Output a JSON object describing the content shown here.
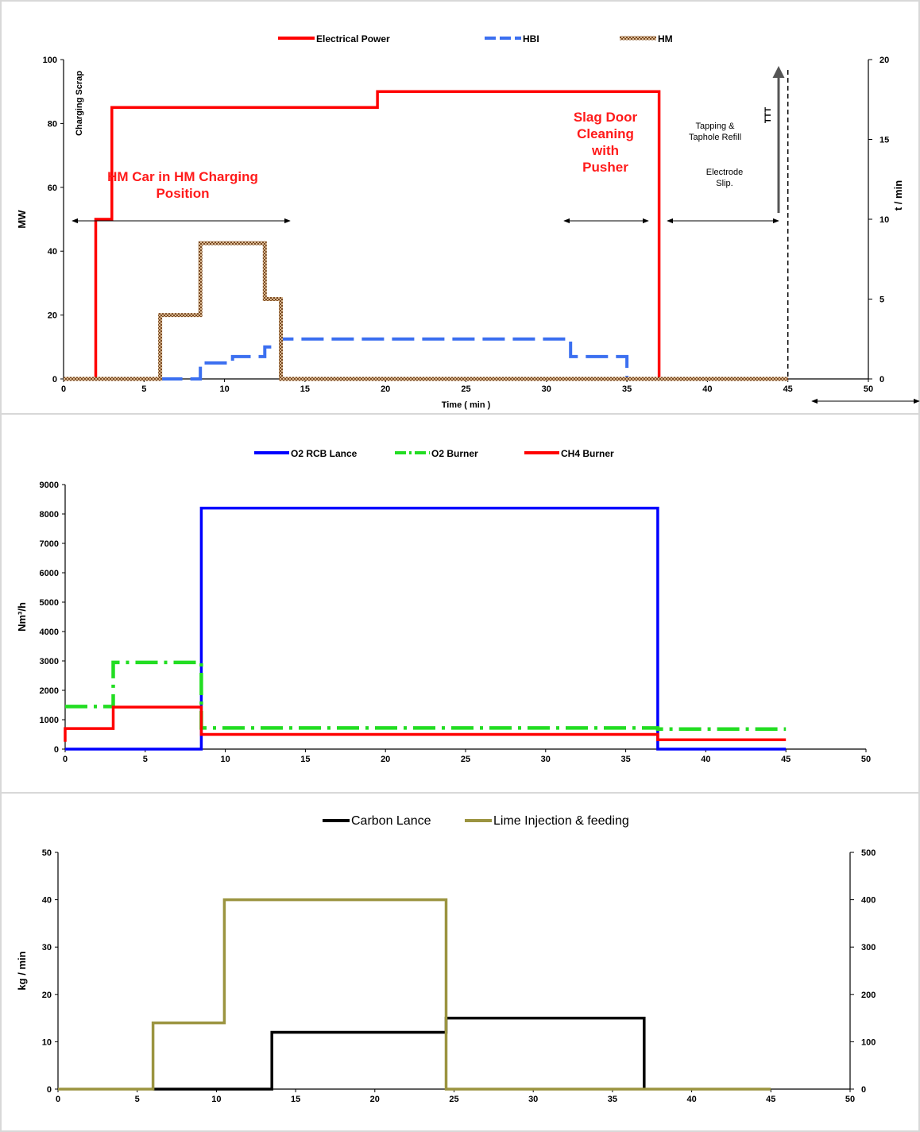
{
  "chart_data": [
    {
      "type": "line",
      "xlabel": "Time ( min )",
      "ylabel": "MW",
      "y2label": "t / min",
      "xlim": [
        0,
        50
      ],
      "ylim": [
        0,
        100
      ],
      "y2lim": [
        0,
        20
      ],
      "x_ticks": [
        "0",
        "5",
        "10",
        "15",
        "20",
        "25",
        "30",
        "35",
        "40",
        "45",
        "50"
      ],
      "y_ticks": [
        "0",
        "20",
        "40",
        "60",
        "80",
        "100"
      ],
      "y2_ticks": [
        "0",
        "5",
        "10",
        "15",
        "20"
      ],
      "legend_position": "top",
      "series": [
        {
          "name": "Electrical Power",
          "axis": "left",
          "color": "#ff0000",
          "style": "solid",
          "x": [
            0,
            2,
            2,
            3,
            3,
            19.5,
            19.5,
            37,
            37,
            45
          ],
          "y": [
            0,
            0,
            50,
            50,
            85,
            85,
            90,
            90,
            0,
            0
          ]
        },
        {
          "name": "HBI",
          "axis": "right",
          "color": "#3b6ff0",
          "style": "dashed",
          "x": [
            6,
            8.5,
            8.5,
            10.5,
            10.5,
            12.5,
            12.5,
            13.5,
            13.5,
            31.5,
            31.5,
            35,
            35
          ],
          "y": [
            0,
            0,
            1,
            1,
            1.4,
            1.4,
            2,
            2,
            2.5,
            2.5,
            1.4,
            1.4,
            0
          ]
        },
        {
          "name": "HM",
          "axis": "right",
          "color": "#7a4a24",
          "style": "hatched",
          "x": [
            0,
            6,
            6,
            8.5,
            8.5,
            12.5,
            12.5,
            13.5,
            13.5,
            45
          ],
          "y": [
            0,
            0,
            4,
            4,
            8.5,
            8.5,
            5,
            5,
            0,
            0
          ]
        }
      ],
      "annotations": {
        "charging_scrap": "Charging Scrap",
        "hm_car_line1": "HM Car in HM Charging",
        "hm_car_line2": "Position",
        "slag_line1": "Slag Door",
        "slag_line2": "Cleaning",
        "slag_line3": "with",
        "slag_line4": "Pusher",
        "tapping_line1": "Tapping &",
        "tapping_line2": "Taphole Refill",
        "electrode_line1": "Electrode",
        "electrode_line2": "Slip.",
        "ttt": "TTT"
      }
    },
    {
      "type": "line",
      "xlabel": "",
      "ylabel": "Nm³/h",
      "xlim": [
        0,
        50
      ],
      "ylim": [
        0,
        9000
      ],
      "x_ticks": [
        "0",
        "5",
        "10",
        "15",
        "20",
        "25",
        "30",
        "35",
        "40",
        "45",
        "50"
      ],
      "y_ticks": [
        "0",
        "1000",
        "2000",
        "3000",
        "4000",
        "5000",
        "6000",
        "7000",
        "8000",
        "9000"
      ],
      "legend_position": "top",
      "series": [
        {
          "name": "O2 RCB Lance",
          "color": "#0000ff",
          "style": "solid",
          "x": [
            0,
            8.5,
            8.5,
            37,
            37,
            45
          ],
          "y": [
            0,
            0,
            8200,
            8200,
            0,
            0
          ]
        },
        {
          "name": "O2  Burner",
          "color": "#22dd22",
          "style": "dashdot",
          "x": [
            0,
            3,
            3,
            8.5,
            8.5,
            37,
            37,
            45
          ],
          "y": [
            1450,
            1450,
            2950,
            2950,
            720,
            720,
            680,
            680
          ]
        },
        {
          "name": "CH4  Burner",
          "color": "#ff0000",
          "style": "solid",
          "x": [
            0,
            0,
            3,
            3,
            8.5,
            8.5,
            37,
            37,
            45
          ],
          "y": [
            250,
            700,
            700,
            1430,
            1430,
            500,
            500,
            320,
            320
          ]
        }
      ]
    },
    {
      "type": "line",
      "xlabel": "",
      "ylabel": "kg / min",
      "xlim": [
        0,
        50
      ],
      "ylim": [
        0,
        50
      ],
      "y2lim": [
        0,
        500
      ],
      "x_ticks": [
        "0",
        "5",
        "10",
        "15",
        "20",
        "25",
        "30",
        "35",
        "40",
        "45",
        "50"
      ],
      "y_ticks": [
        "0",
        "10",
        "20",
        "30",
        "40",
        "50"
      ],
      "y2_ticks": [
        "0",
        "100",
        "200",
        "300",
        "400",
        "500"
      ],
      "legend_position": "top",
      "series": [
        {
          "name": "Carbon Lance",
          "axis": "left",
          "color": "#000000",
          "style": "solid",
          "x": [
            6,
            13.5,
            13.5,
            24.5,
            24.5,
            37,
            37
          ],
          "y": [
            0,
            0,
            12,
            12,
            15,
            15,
            0
          ]
        },
        {
          "name": "Lime Injection & feeding",
          "axis": "left",
          "color": "#9b9440",
          "style": "solid",
          "x": [
            0,
            6,
            6,
            10.5,
            10.5,
            24.5,
            24.5,
            45
          ],
          "y": [
            0,
            0,
            14,
            14,
            40,
            40,
            0,
            0
          ]
        }
      ]
    }
  ]
}
